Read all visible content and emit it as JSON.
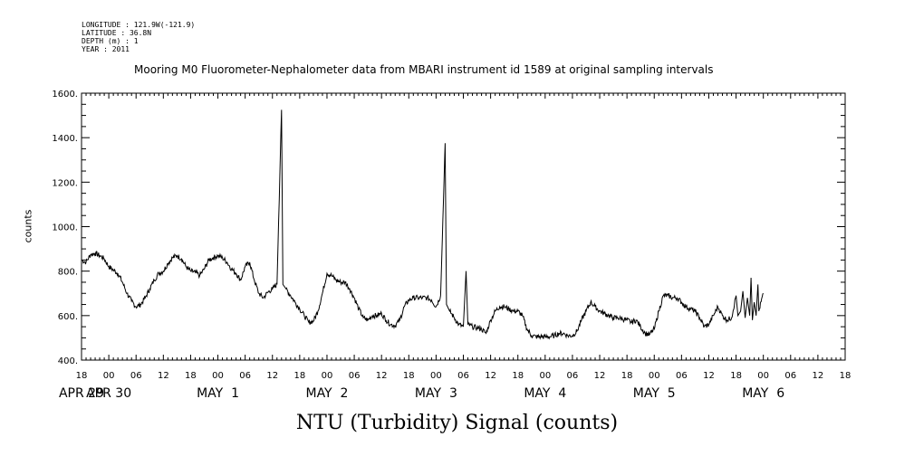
{
  "metadata": {
    "longitude": "LONGITUDE : 121.9W(-121.9)",
    "latitude": "LATITUDE : 36.8N",
    "depth": "DEPTH (m) : 1",
    "year": "YEAR : 2011"
  },
  "chart_data": {
    "type": "line",
    "title": "Mooring M0 Fluorometer-Nephalometer data from MBARI instrument id 1589 at original sampling intervals",
    "xlabel": "NTU (Turbidity) Signal (counts)",
    "ylabel": "counts",
    "ylim": [
      400,
      1600
    ],
    "yticks": [
      400,
      600,
      800,
      1000,
      1200,
      1400,
      1600
    ],
    "ytick_labels": [
      "400.",
      "600.",
      "800.",
      "1000.",
      "1200.",
      "1400.",
      "1600."
    ],
    "x_unit": "hours since 2011-04-28 18:00",
    "xlim": [
      0,
      168
    ],
    "hour_ticks": [
      {
        "x": 0,
        "label": "18"
      },
      {
        "x": 6,
        "label": "00"
      },
      {
        "x": 12,
        "label": "06"
      },
      {
        "x": 18,
        "label": "12"
      },
      {
        "x": 24,
        "label": "18"
      },
      {
        "x": 30,
        "label": "00"
      },
      {
        "x": 36,
        "label": "06"
      },
      {
        "x": 42,
        "label": "12"
      },
      {
        "x": 48,
        "label": "18"
      },
      {
        "x": 54,
        "label": "00"
      },
      {
        "x": 60,
        "label": "06"
      },
      {
        "x": 66,
        "label": "12"
      },
      {
        "x": 72,
        "label": "18"
      },
      {
        "x": 78,
        "label": "00"
      },
      {
        "x": 84,
        "label": "06"
      },
      {
        "x": 90,
        "label": "12"
      },
      {
        "x": 96,
        "label": "18"
      },
      {
        "x": 102,
        "label": "00"
      },
      {
        "x": 108,
        "label": "06"
      },
      {
        "x": 114,
        "label": "12"
      },
      {
        "x": 120,
        "label": "18"
      },
      {
        "x": 126,
        "label": "00"
      },
      {
        "x": 132,
        "label": "06"
      },
      {
        "x": 138,
        "label": "12"
      },
      {
        "x": 144,
        "label": "18"
      },
      {
        "x": 150,
        "label": "00"
      },
      {
        "x": 156,
        "label": "06"
      },
      {
        "x": 162,
        "label": "12"
      },
      {
        "x": 168,
        "label": "18"
      }
    ],
    "date_labels": [
      {
        "x": 0,
        "label": "APR 29"
      },
      {
        "x": 6,
        "label": "APR 30"
      },
      {
        "x": 30,
        "label": "MAY  1"
      },
      {
        "x": 54,
        "label": "MAY  2"
      },
      {
        "x": 78,
        "label": "MAY  3"
      },
      {
        "x": 102,
        "label": "MAY  4"
      },
      {
        "x": 126,
        "label": "MAY  5"
      },
      {
        "x": 150,
        "label": "MAY  6"
      }
    ],
    "series": [
      {
        "color": "#000000",
        "points": [
          [
            0,
            850
          ],
          [
            1,
            840
          ],
          [
            2,
            875
          ],
          [
            3,
            880
          ],
          [
            4,
            870
          ],
          [
            5,
            855
          ],
          [
            6,
            820
          ],
          [
            7,
            805
          ],
          [
            8,
            790
          ],
          [
            9,
            750
          ],
          [
            10,
            700
          ],
          [
            11,
            665
          ],
          [
            12,
            640
          ],
          [
            13,
            650
          ],
          [
            14,
            680
          ],
          [
            15,
            720
          ],
          [
            16,
            760
          ],
          [
            17,
            790
          ],
          [
            18,
            800
          ],
          [
            19,
            835
          ],
          [
            20,
            860
          ],
          [
            21,
            870
          ],
          [
            22,
            855
          ],
          [
            23,
            820
          ],
          [
            24,
            800
          ],
          [
            25,
            795
          ],
          [
            26,
            780
          ],
          [
            27,
            810
          ],
          [
            28,
            850
          ],
          [
            29,
            860
          ],
          [
            30,
            870
          ],
          [
            31,
            860
          ],
          [
            32,
            840
          ],
          [
            33,
            810
          ],
          [
            34,
            790
          ],
          [
            35,
            760
          ],
          [
            36,
            820
          ],
          [
            37,
            840
          ],
          [
            38,
            760
          ],
          [
            39,
            700
          ],
          [
            40,
            680
          ],
          [
            41,
            705
          ],
          [
            42,
            720
          ],
          [
            43,
            740
          ],
          [
            44,
            1525
          ],
          [
            44.3,
            740
          ],
          [
            45,
            720
          ],
          [
            46,
            690
          ],
          [
            47,
            660
          ],
          [
            48,
            630
          ],
          [
            49,
            600
          ],
          [
            50,
            570
          ],
          [
            51,
            575
          ],
          [
            52,
            620
          ],
          [
            53,
            700
          ],
          [
            54,
            790
          ],
          [
            55,
            780
          ],
          [
            56,
            760
          ],
          [
            57,
            750
          ],
          [
            58,
            750
          ],
          [
            59,
            720
          ],
          [
            60,
            680
          ],
          [
            61,
            630
          ],
          [
            62,
            590
          ],
          [
            63,
            580
          ],
          [
            64,
            600
          ],
          [
            65,
            600
          ],
          [
            66,
            610
          ],
          [
            67,
            580
          ],
          [
            68,
            560
          ],
          [
            69,
            555
          ],
          [
            70,
            580
          ],
          [
            71,
            640
          ],
          [
            72,
            670
          ],
          [
            73,
            680
          ],
          [
            74,
            680
          ],
          [
            75,
            680
          ],
          [
            76,
            680
          ],
          [
            77,
            670
          ],
          [
            78,
            640
          ],
          [
            79,
            690
          ],
          [
            80,
            1375
          ],
          [
            80.3,
            650
          ],
          [
            81,
            620
          ],
          [
            82,
            590
          ],
          [
            83,
            560
          ],
          [
            84,
            550
          ],
          [
            84.6,
            800
          ],
          [
            85,
            560
          ],
          [
            86,
            550
          ],
          [
            87,
            545
          ],
          [
            88,
            540
          ],
          [
            89,
            520
          ],
          [
            90,
            580
          ],
          [
            91,
            620
          ],
          [
            92,
            640
          ],
          [
            93,
            640
          ],
          [
            94,
            630
          ],
          [
            95,
            620
          ],
          [
            96,
            620
          ],
          [
            97,
            600
          ],
          [
            98,
            540
          ],
          [
            99,
            510
          ],
          [
            100,
            505
          ],
          [
            101,
            505
          ],
          [
            102,
            505
          ],
          [
            103,
            505
          ],
          [
            104,
            510
          ],
          [
            105,
            520
          ],
          [
            106,
            520
          ],
          [
            107,
            510
          ],
          [
            108,
            510
          ],
          [
            109,
            530
          ],
          [
            110,
            580
          ],
          [
            111,
            620
          ],
          [
            112,
            660
          ],
          [
            113,
            640
          ],
          [
            114,
            620
          ],
          [
            115,
            610
          ],
          [
            116,
            600
          ],
          [
            117,
            590
          ],
          [
            118,
            590
          ],
          [
            119,
            585
          ],
          [
            120,
            580
          ],
          [
            121,
            570
          ],
          [
            122,
            580
          ],
          [
            123,
            550
          ],
          [
            124,
            520
          ],
          [
            125,
            515
          ],
          [
            126,
            540
          ],
          [
            127,
            620
          ],
          [
            128,
            690
          ],
          [
            129,
            690
          ],
          [
            130,
            680
          ],
          [
            131,
            680
          ],
          [
            132,
            660
          ],
          [
            133,
            640
          ],
          [
            134,
            630
          ],
          [
            135,
            620
          ],
          [
            136,
            590
          ],
          [
            137,
            550
          ],
          [
            138,
            560
          ],
          [
            139,
            600
          ],
          [
            140,
            640
          ],
          [
            141,
            600
          ],
          [
            142,
            580
          ],
          [
            143,
            590
          ],
          [
            144,
            690
          ],
          [
            144.4,
            600
          ],
          [
            145,
            620
          ],
          [
            145.5,
            710
          ],
          [
            146,
            590
          ],
          [
            146.5,
            680
          ],
          [
            147,
            600
          ],
          [
            147.3,
            770
          ],
          [
            147.6,
            580
          ],
          [
            148,
            660
          ],
          [
            148.4,
            600
          ],
          [
            148.8,
            740
          ],
          [
            149,
            620
          ],
          [
            150,
            700
          ]
        ]
      }
    ]
  }
}
